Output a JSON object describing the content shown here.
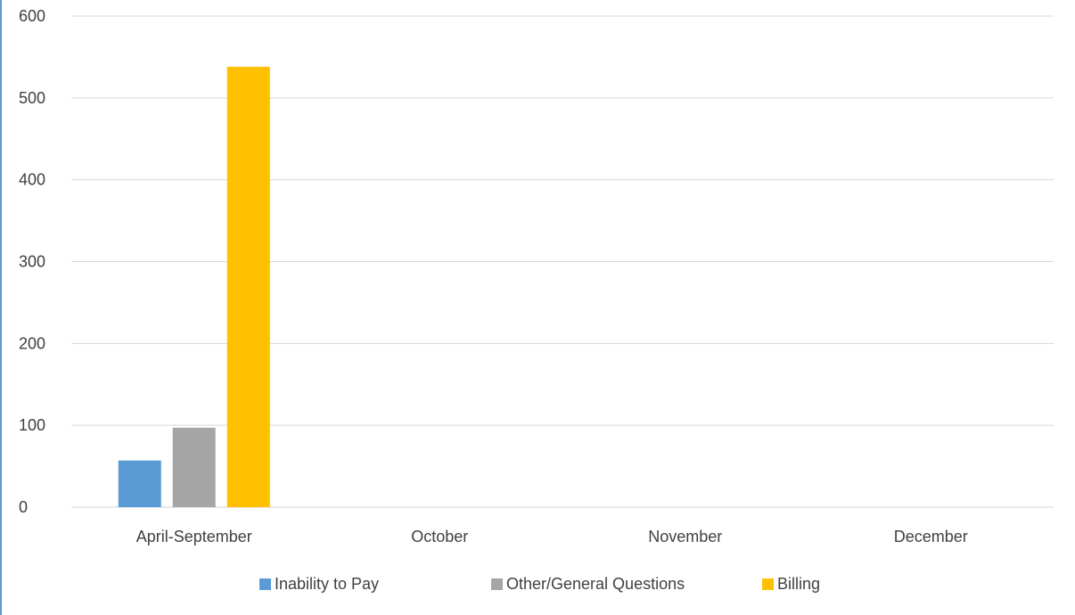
{
  "chart_data": {
    "type": "bar",
    "categories": [
      "April-September",
      "October",
      "November",
      "December"
    ],
    "series": [
      {
        "name": "Inability to Pay",
        "color": "#5b9bd5",
        "values": [
          57,
          0,
          0,
          0
        ]
      },
      {
        "name": "Other/General Questions",
        "color": "#a5a5a5",
        "values": [
          97,
          0,
          0,
          0
        ]
      },
      {
        "name": "Billing",
        "color": "#ffc000",
        "values": [
          538,
          0,
          0,
          0
        ]
      }
    ],
    "ylim": [
      0,
      600
    ],
    "yticks": [
      0,
      100,
      200,
      300,
      400,
      500,
      600
    ],
    "grid": true,
    "legend_position": "bottom",
    "title": "",
    "xlabel": "",
    "ylabel": ""
  }
}
